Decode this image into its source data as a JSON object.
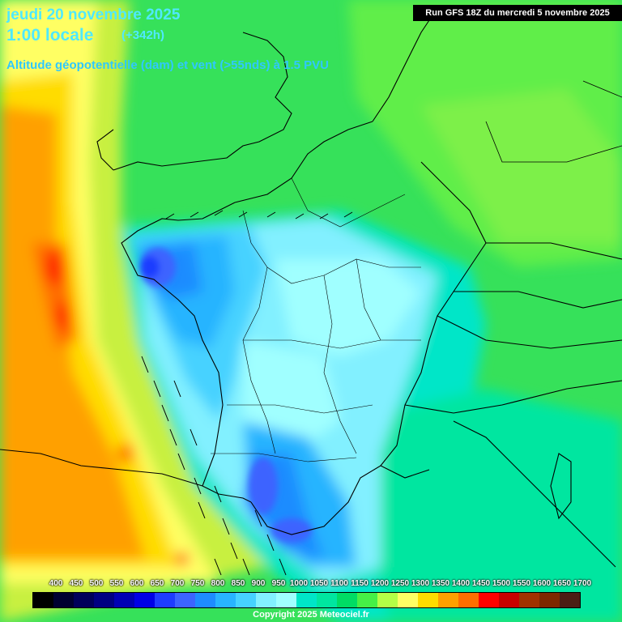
{
  "header": {
    "date": "jeudi 20 novembre 2025",
    "local_time": "1:00 locale",
    "offset": "(+342h)",
    "parameter": "Altitude géopotentielle (dam) et vent (>55nds) à 1.5 PVU",
    "run_info": "Run GFS 18Z du mercredi 5 novembre 2025"
  },
  "legend": {
    "values": [
      "400",
      "450",
      "500",
      "550",
      "600",
      "650",
      "700",
      "750",
      "800",
      "850",
      "900",
      "950",
      "1000",
      "1050",
      "1100",
      "1150",
      "1200",
      "1250",
      "1300",
      "1350",
      "1400",
      "1450",
      "1500",
      "1550",
      "1600",
      "1650",
      "1700"
    ],
    "colors": [
      "#000000",
      "#000030",
      "#00005a",
      "#000082",
      "#0000b4",
      "#0000e6",
      "#1e3cff",
      "#3c64ff",
      "#1e8cff",
      "#28b4ff",
      "#46d2ff",
      "#82f0ff",
      "#a0ffff",
      "#00e6c8",
      "#00e6a0",
      "#00dc64",
      "#46f046",
      "#b4ff46",
      "#ffff64",
      "#ffdc00",
      "#ffa000",
      "#ff6e00",
      "#ff0000",
      "#c80000",
      "#a03200",
      "#7d2800",
      "#4b1e14"
    ]
  },
  "footer": {
    "copyright": "Copyright 2025 Meteociel.fr"
  }
}
